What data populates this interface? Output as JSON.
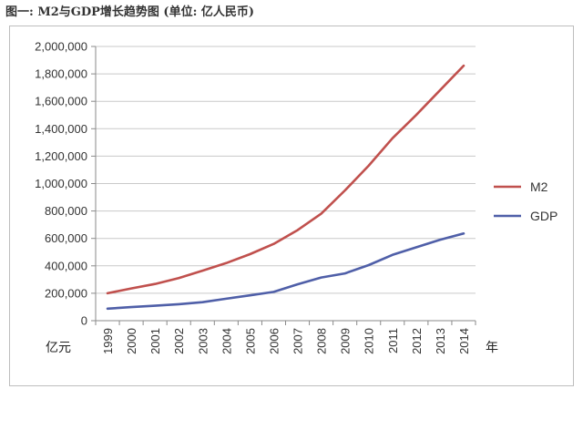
{
  "caption": "图一: M2与GDP增长趋势图 (单位: 亿人民币)",
  "chart_data": {
    "type": "line",
    "title": "图一: M2与GDP增长趋势图 (单位: 亿人民币)",
    "ylabel": "亿元",
    "xlabel": "年",
    "ylim": [
      0,
      2000000
    ],
    "yticks": [
      0,
      200000,
      400000,
      600000,
      800000,
      1000000,
      1200000,
      1400000,
      1600000,
      1800000,
      2000000
    ],
    "ytick_labels": [
      "0",
      "200,000",
      "400,000",
      "600,000",
      "800,000",
      "1,000,000",
      "1,200,000",
      "1,400,000",
      "1,600,000",
      "1,800,000",
      "2,000,000"
    ],
    "categories": [
      "1999",
      "2000",
      "2001",
      "2002",
      "2003",
      "2004",
      "2005",
      "2006",
      "2007",
      "2008",
      "2009",
      "2010",
      "2011",
      "2012",
      "2013",
      "2014"
    ],
    "grid": true,
    "legend_position": "right",
    "series": [
      {
        "name": "M2",
        "color": "#c0504d",
        "values": [
          200000,
          235000,
          268000,
          310000,
          365000,
          420000,
          485000,
          560000,
          660000,
          780000,
          950000,
          1130000,
          1330000,
          1500000,
          1680000,
          1860000
        ]
      },
      {
        "name": "GDP",
        "color": "#4f5fa8",
        "values": [
          88000,
          99000,
          109000,
          120000,
          135000,
          160000,
          185000,
          210000,
          265000,
          315000,
          345000,
          405000,
          480000,
          535000,
          590000,
          636000
        ]
      }
    ]
  }
}
